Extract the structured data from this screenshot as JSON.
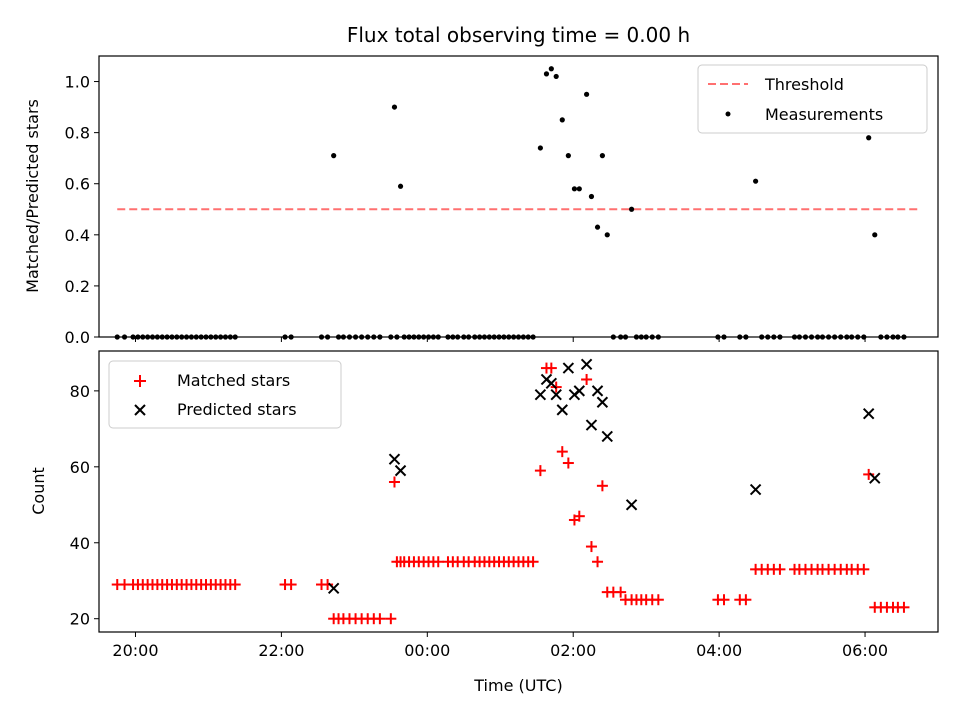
{
  "chart_data": [
    {
      "type": "scatter",
      "title": "Flux total observing time = 0.00 h",
      "xlabel": "",
      "ylabel": "Matched/Predicted stars",
      "xlim": [
        "19:30",
        "07:00"
      ],
      "ylim": [
        0,
        1.1
      ],
      "yticks": [
        "0.0",
        "0.2",
        "0.4",
        "0.6",
        "0.8",
        "1.0"
      ],
      "grid": false,
      "legend_position": "top-right",
      "threshold": {
        "name": "Threshold",
        "color": "#ff7070",
        "style": "dashed",
        "y": 0.5,
        "x_range": [
          "19:45",
          "06:45"
        ]
      },
      "series": [
        {
          "name": "Measurements",
          "color": "#000000",
          "points": [
            [
              "19:45",
              0
            ],
            [
              "19:51",
              0
            ],
            [
              "19:58",
              0
            ],
            [
              "20:02",
              0
            ],
            [
              "20:06",
              0
            ],
            [
              "20:10",
              0
            ],
            [
              "20:14",
              0
            ],
            [
              "20:18",
              0
            ],
            [
              "20:22",
              0
            ],
            [
              "20:26",
              0
            ],
            [
              "20:30",
              0
            ],
            [
              "20:34",
              0
            ],
            [
              "20:38",
              0
            ],
            [
              "20:42",
              0
            ],
            [
              "20:46",
              0
            ],
            [
              "20:50",
              0
            ],
            [
              "20:54",
              0
            ],
            [
              "20:58",
              0
            ],
            [
              "21:02",
              0
            ],
            [
              "21:06",
              0
            ],
            [
              "21:10",
              0
            ],
            [
              "21:14",
              0
            ],
            [
              "21:18",
              0
            ],
            [
              "21:22",
              0
            ],
            [
              "22:03",
              0
            ],
            [
              "22:08",
              0
            ],
            [
              "22:33",
              0
            ],
            [
              "22:38",
              0
            ],
            [
              "22:43",
              0.71
            ],
            [
              "22:47",
              0
            ],
            [
              "22:51",
              0
            ],
            [
              "22:56",
              0
            ],
            [
              "23:01",
              0
            ],
            [
              "23:06",
              0
            ],
            [
              "23:11",
              0
            ],
            [
              "23:16",
              0
            ],
            [
              "23:21",
              0
            ],
            [
              "23:30",
              0
            ],
            [
              "23:33",
              0.9
            ],
            [
              "23:35",
              0
            ],
            [
              "23:38",
              0.59
            ],
            [
              "23:41",
              0
            ],
            [
              "23:45",
              0
            ],
            [
              "23:49",
              0
            ],
            [
              "23:53",
              0
            ],
            [
              "23:57",
              0
            ],
            [
              "00:01",
              0
            ],
            [
              "00:05",
              0
            ],
            [
              "00:09",
              0
            ],
            [
              "00:17",
              0
            ],
            [
              "00:21",
              0
            ],
            [
              "00:25",
              0
            ],
            [
              "00:30",
              0
            ],
            [
              "00:34",
              0
            ],
            [
              "00:39",
              0
            ],
            [
              "00:43",
              0
            ],
            [
              "00:47",
              0
            ],
            [
              "00:51",
              0
            ],
            [
              "00:55",
              0
            ],
            [
              "00:59",
              0
            ],
            [
              "01:03",
              0
            ],
            [
              "01:07",
              0
            ],
            [
              "01:11",
              0
            ],
            [
              "01:15",
              0
            ],
            [
              "01:19",
              0
            ],
            [
              "01:23",
              0
            ],
            [
              "01:27",
              0
            ],
            [
              "01:33",
              0.74
            ],
            [
              "01:38",
              1.03
            ],
            [
              "01:42",
              1.05
            ],
            [
              "01:46",
              1.02
            ],
            [
              "01:51",
              0.85
            ],
            [
              "01:56",
              0.71
            ],
            [
              "02:01",
              0.58
            ],
            [
              "02:05",
              0.58
            ],
            [
              "02:11",
              0.95
            ],
            [
              "02:15",
              0.55
            ],
            [
              "02:20",
              0.43
            ],
            [
              "02:24",
              0.71
            ],
            [
              "02:28",
              0.4
            ],
            [
              "02:33",
              0
            ],
            [
              "02:39",
              0
            ],
            [
              "02:43",
              0
            ],
            [
              "02:48",
              0.5
            ],
            [
              "02:52",
              0
            ],
            [
              "02:56",
              0
            ],
            [
              "03:00",
              0
            ],
            [
              "03:05",
              0
            ],
            [
              "03:10",
              0
            ],
            [
              "03:59",
              0
            ],
            [
              "04:04",
              0
            ],
            [
              "04:17",
              0
            ],
            [
              "04:22",
              0
            ],
            [
              "04:30",
              0.61
            ],
            [
              "04:35",
              0
            ],
            [
              "04:40",
              0
            ],
            [
              "04:45",
              0
            ],
            [
              "04:50",
              0
            ],
            [
              "05:02",
              0
            ],
            [
              "05:06",
              0
            ],
            [
              "05:11",
              0
            ],
            [
              "05:16",
              0
            ],
            [
              "05:21",
              0
            ],
            [
              "05:25",
              0
            ],
            [
              "05:30",
              0
            ],
            [
              "05:35",
              0
            ],
            [
              "05:40",
              0
            ],
            [
              "05:45",
              0
            ],
            [
              "05:49",
              0
            ],
            [
              "05:54",
              0
            ],
            [
              "05:59",
              0
            ],
            [
              "06:03",
              0.78
            ],
            [
              "06:08",
              0.4
            ],
            [
              "06:13",
              0
            ],
            [
              "06:18",
              0
            ],
            [
              "06:23",
              0
            ],
            [
              "06:27",
              0
            ],
            [
              "06:32",
              0
            ]
          ]
        }
      ]
    },
    {
      "type": "scatter",
      "title": "",
      "xlabel": "Time (UTC)",
      "ylabel": "Count",
      "xlim": [
        "19:30",
        "07:00"
      ],
      "ylim": [
        16.5,
        90.5
      ],
      "yticks": [
        "20",
        "40",
        "60",
        "80"
      ],
      "xticks": [
        "20:00",
        "22:00",
        "00:00",
        "02:00",
        "04:00",
        "06:00"
      ],
      "grid": false,
      "legend_position": "top-left",
      "series": [
        {
          "name": "Matched stars",
          "color": "#ff0000",
          "marker": "plus",
          "points": [
            [
              "19:45",
              29
            ],
            [
              "19:51",
              29
            ],
            [
              "19:58",
              29
            ],
            [
              "20:02",
              29
            ],
            [
              "20:06",
              29
            ],
            [
              "20:10",
              29
            ],
            [
              "20:14",
              29
            ],
            [
              "20:18",
              29
            ],
            [
              "20:22",
              29
            ],
            [
              "20:26",
              29
            ],
            [
              "20:30",
              29
            ],
            [
              "20:34",
              29
            ],
            [
              "20:38",
              29
            ],
            [
              "20:42",
              29
            ],
            [
              "20:46",
              29
            ],
            [
              "20:50",
              29
            ],
            [
              "20:54",
              29
            ],
            [
              "20:58",
              29
            ],
            [
              "21:02",
              29
            ],
            [
              "21:06",
              29
            ],
            [
              "21:10",
              29
            ],
            [
              "21:14",
              29
            ],
            [
              "21:18",
              29
            ],
            [
              "21:22",
              29
            ],
            [
              "22:03",
              29
            ],
            [
              "22:08",
              29
            ],
            [
              "22:33",
              29
            ],
            [
              "22:38",
              29
            ],
            [
              "22:43",
              20
            ],
            [
              "22:47",
              20
            ],
            [
              "22:51",
              20
            ],
            [
              "22:56",
              20
            ],
            [
              "23:01",
              20
            ],
            [
              "23:06",
              20
            ],
            [
              "23:11",
              20
            ],
            [
              "23:16",
              20
            ],
            [
              "23:21",
              20
            ],
            [
              "23:30",
              20
            ],
            [
              "23:33",
              56
            ],
            [
              "23:35",
              35
            ],
            [
              "23:38",
              35
            ],
            [
              "23:41",
              35
            ],
            [
              "23:45",
              35
            ],
            [
              "23:49",
              35
            ],
            [
              "23:53",
              35
            ],
            [
              "23:57",
              35
            ],
            [
              "00:01",
              35
            ],
            [
              "00:05",
              35
            ],
            [
              "00:09",
              35
            ],
            [
              "00:17",
              35
            ],
            [
              "00:21",
              35
            ],
            [
              "00:25",
              35
            ],
            [
              "00:30",
              35
            ],
            [
              "00:34",
              35
            ],
            [
              "00:39",
              35
            ],
            [
              "00:43",
              35
            ],
            [
              "00:47",
              35
            ],
            [
              "00:51",
              35
            ],
            [
              "00:55",
              35
            ],
            [
              "00:59",
              35
            ],
            [
              "01:03",
              35
            ],
            [
              "01:07",
              35
            ],
            [
              "01:11",
              35
            ],
            [
              "01:15",
              35
            ],
            [
              "01:19",
              35
            ],
            [
              "01:23",
              35
            ],
            [
              "01:27",
              35
            ],
            [
              "01:33",
              59
            ],
            [
              "01:38",
              86
            ],
            [
              "01:42",
              86
            ],
            [
              "01:46",
              81
            ],
            [
              "01:51",
              64
            ],
            [
              "01:56",
              61
            ],
            [
              "02:01",
              46
            ],
            [
              "02:05",
              47
            ],
            [
              "02:11",
              83
            ],
            [
              "02:15",
              39
            ],
            [
              "02:20",
              35
            ],
            [
              "02:24",
              55
            ],
            [
              "02:28",
              27
            ],
            [
              "02:33",
              27
            ],
            [
              "02:39",
              27
            ],
            [
              "02:43",
              25
            ],
            [
              "02:48",
              25
            ],
            [
              "02:52",
              25
            ],
            [
              "02:56",
              25
            ],
            [
              "03:00",
              25
            ],
            [
              "03:05",
              25
            ],
            [
              "03:10",
              25
            ],
            [
              "03:59",
              25
            ],
            [
              "04:04",
              25
            ],
            [
              "04:17",
              25
            ],
            [
              "04:22",
              25
            ],
            [
              "04:30",
              33
            ],
            [
              "04:35",
              33
            ],
            [
              "04:40",
              33
            ],
            [
              "04:45",
              33
            ],
            [
              "04:50",
              33
            ],
            [
              "05:02",
              33
            ],
            [
              "05:06",
              33
            ],
            [
              "05:11",
              33
            ],
            [
              "05:16",
              33
            ],
            [
              "05:21",
              33
            ],
            [
              "05:25",
              33
            ],
            [
              "05:30",
              33
            ],
            [
              "05:35",
              33
            ],
            [
              "05:40",
              33
            ],
            [
              "05:45",
              33
            ],
            [
              "05:49",
              33
            ],
            [
              "05:54",
              33
            ],
            [
              "05:59",
              33
            ],
            [
              "06:03",
              58
            ],
            [
              "06:08",
              23
            ],
            [
              "06:13",
              23
            ],
            [
              "06:18",
              23
            ],
            [
              "06:23",
              23
            ],
            [
              "06:27",
              23
            ],
            [
              "06:32",
              23
            ]
          ]
        },
        {
          "name": "Predicted stars",
          "color": "#000000",
          "marker": "x",
          "points": [
            [
              "22:43",
              28
            ],
            [
              "23:33",
              62
            ],
            [
              "23:38",
              59
            ],
            [
              "01:33",
              79
            ],
            [
              "01:38",
              83
            ],
            [
              "01:42",
              82
            ],
            [
              "01:46",
              79
            ],
            [
              "01:51",
              75
            ],
            [
              "01:56",
              86
            ],
            [
              "02:01",
              79
            ],
            [
              "02:05",
              80
            ],
            [
              "02:11",
              87
            ],
            [
              "02:15",
              71
            ],
            [
              "02:20",
              80
            ],
            [
              "02:24",
              77
            ],
            [
              "02:28",
              68
            ],
            [
              "02:48",
              50
            ],
            [
              "04:30",
              54
            ],
            [
              "06:03",
              74
            ],
            [
              "06:08",
              57
            ]
          ]
        }
      ]
    }
  ]
}
